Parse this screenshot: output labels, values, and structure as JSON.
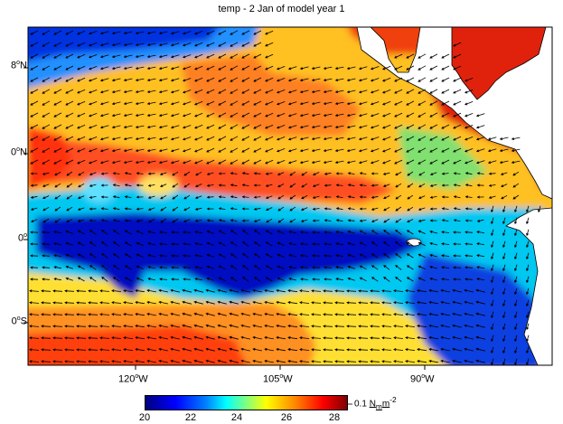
{
  "title": "temp - 2 Jan of model year 1",
  "lat_labels": [
    {
      "deg": "8",
      "hemi": "N"
    },
    {
      "deg": "0",
      "hemi": "N"
    },
    {
      "deg": "0",
      "hemi": ""
    },
    {
      "deg": "0",
      "hemi": "S"
    }
  ],
  "lon_labels": [
    {
      "deg": "120",
      "hemi": "W"
    },
    {
      "deg": "105",
      "hemi": "W"
    },
    {
      "deg": "90",
      "hemi": "W"
    }
  ],
  "colorbar": {
    "ticks": [
      "20",
      "22",
      "24",
      "26",
      "28"
    ],
    "range": [
      20,
      28.8
    ]
  },
  "vector_reference": {
    "value": "0.1",
    "unit": "N",
    "sub": "m",
    "exp": "-2"
  },
  "colors": {
    "cold": "#0000c8",
    "cool": "#00c8ff",
    "mild": "#ffff40",
    "warm": "#ff9020",
    "hot": "#e82010",
    "land": "#ffffff"
  }
}
